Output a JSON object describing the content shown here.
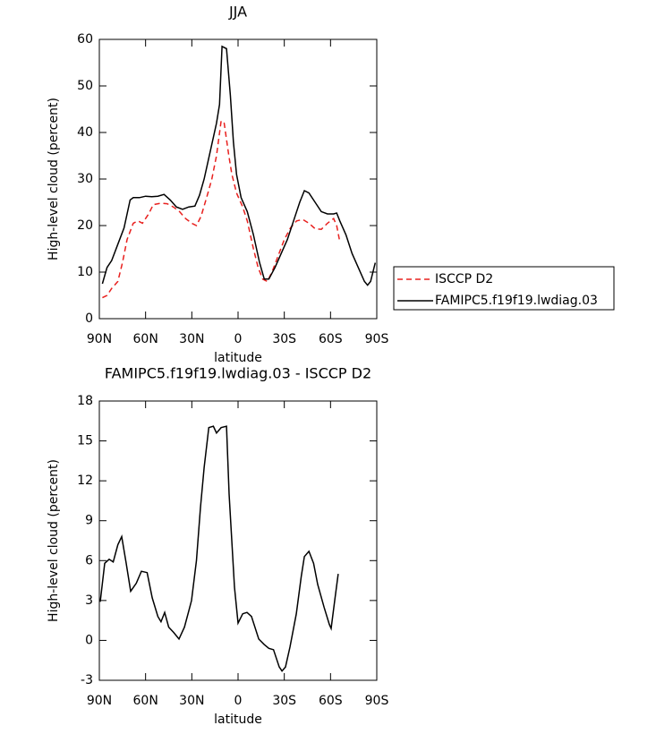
{
  "chart_data": [
    {
      "type": "line",
      "title": "JJA",
      "xlabel": "latitude",
      "ylabel": "High-level cloud (percent)",
      "xlim": [
        90,
        -90
      ],
      "xticks": [
        {
          "value": 90,
          "label": "90N"
        },
        {
          "value": 60,
          "label": "60N"
        },
        {
          "value": 30,
          "label": "30N"
        },
        0,
        {
          "value": -30,
          "label": "30S"
        },
        {
          "value": -60,
          "label": "60S"
        },
        {
          "value": -90,
          "label": "90S"
        }
      ],
      "ylim": [
        0,
        60
      ],
      "yticks": [
        0,
        10,
        20,
        30,
        40,
        50,
        60
      ],
      "legend": "right",
      "series": [
        {
          "name": "ISCCP D2",
          "color": "#e8201e",
          "dash": true,
          "x": [
            88,
            85,
            82,
            78,
            75,
            72,
            68,
            65,
            62,
            58,
            55,
            50,
            46,
            42,
            38,
            34,
            30,
            27,
            24,
            20,
            17,
            14,
            11,
            9,
            6,
            4,
            1,
            -3,
            -6,
            -10,
            -13,
            -16,
            -19,
            -22,
            -26,
            -30,
            -34,
            -38,
            -42,
            -46,
            -50,
            -54,
            -58,
            -62,
            -64,
            -66
          ],
          "values": [
            4.5,
            5,
            6.5,
            8,
            12,
            17,
            20.5,
            21,
            20.5,
            22.5,
            24.5,
            24.8,
            24.7,
            24,
            23,
            21.5,
            20.5,
            20,
            22,
            26.5,
            30,
            35,
            42.5,
            42,
            35,
            31,
            27,
            24,
            21,
            15,
            11,
            8.5,
            8,
            10,
            13.5,
            17,
            19.5,
            21,
            21.3,
            20.5,
            19.3,
            19.2,
            20.5,
            21.5,
            20,
            16.5
          ]
        },
        {
          "name": "FAMIPC5.f19f19.lwdiag.03",
          "color": "#000000",
          "dash": false,
          "x": [
            88,
            85,
            82,
            78,
            74,
            70,
            68,
            64,
            60,
            56,
            52,
            48,
            44,
            40,
            36,
            32,
            28,
            25,
            22,
            18,
            14,
            12,
            10.4,
            7.5,
            5,
            3,
            1,
            -2,
            -6,
            -10,
            -14,
            -17,
            -20,
            -24,
            -28,
            -32,
            -36,
            -40,
            -43,
            -46,
            -50,
            -54,
            -58,
            -62,
            -64,
            -66,
            -70,
            -74,
            -78,
            -82,
            -84,
            -86,
            -89
          ],
          "values": [
            7.5,
            11,
            12.5,
            16,
            19.5,
            25.5,
            26,
            26,
            26.3,
            26.2,
            26.3,
            26.7,
            25.5,
            24,
            23.5,
            24,
            24.2,
            26.5,
            30,
            36,
            42,
            46,
            58.5,
            58,
            48,
            38,
            31,
            26,
            23,
            18,
            12,
            8.5,
            8.5,
            11,
            14,
            17,
            21,
            25,
            27.5,
            27,
            25,
            23,
            22.5,
            22.5,
            22.7,
            21,
            18,
            14,
            11,
            8,
            7.2,
            8,
            12
          ]
        }
      ]
    },
    {
      "type": "line",
      "title": "FAMIPC5.f19f19.lwdiag.03 - ISCCP D2",
      "xlabel": "latitude",
      "ylabel": "High-level cloud (percent)",
      "xlim": [
        90,
        -90
      ],
      "xticks": [
        {
          "value": 90,
          "label": "90N"
        },
        {
          "value": 60,
          "label": "60N"
        },
        {
          "value": 30,
          "label": "30N"
        },
        0,
        {
          "value": -30,
          "label": "30S"
        },
        {
          "value": -60,
          "label": "60S"
        },
        {
          "value": -90,
          "label": "90S"
        }
      ],
      "ylim": [
        -3,
        18
      ],
      "yticks": [
        -3,
        0,
        3,
        6,
        9,
        12,
        15,
        18
      ],
      "series": [
        {
          "color": "#000000",
          "dash": false,
          "x": [
            89.4,
            86.5,
            83.6,
            81,
            78,
            75.5,
            72.6,
            69.7,
            66,
            62.7,
            59,
            55.7,
            52,
            50,
            47.6,
            45,
            41.8,
            38.3,
            34.8,
            32,
            30.2,
            27,
            24.4,
            22,
            19,
            16,
            14,
            11,
            7.5,
            5.8,
            2.3,
            0,
            -3,
            -5.8,
            -8.7,
            -13.4,
            -16.9,
            -20,
            -23,
            -26.7,
            -28.5,
            -30.8,
            -33.7,
            -37.8,
            -41,
            -43,
            -46,
            -49,
            -51.7,
            -55.8,
            -59.2,
            -60.4,
            -62.7,
            -65
          ],
          "values": [
            2.9,
            5.8,
            6.1,
            5.9,
            7.2,
            7.8,
            5.8,
            3.7,
            4.3,
            5.2,
            5.1,
            3.2,
            1.8,
            1.4,
            2.1,
            1.0,
            0.6,
            0.1,
            1.0,
            2.2,
            3.0,
            6,
            10,
            13,
            16,
            16.1,
            15.6,
            16.0,
            16.1,
            11,
            4,
            1.3,
            2.0,
            2.1,
            1.8,
            0.1,
            -0.3,
            -0.6,
            -0.7,
            -2.0,
            -2.3,
            -2.0,
            -0.5,
            2,
            4.8,
            6.3,
            6.7,
            5.8,
            4.2,
            2.5,
            1.2,
            0.9,
            3.0,
            5
          ]
        }
      ]
    }
  ]
}
